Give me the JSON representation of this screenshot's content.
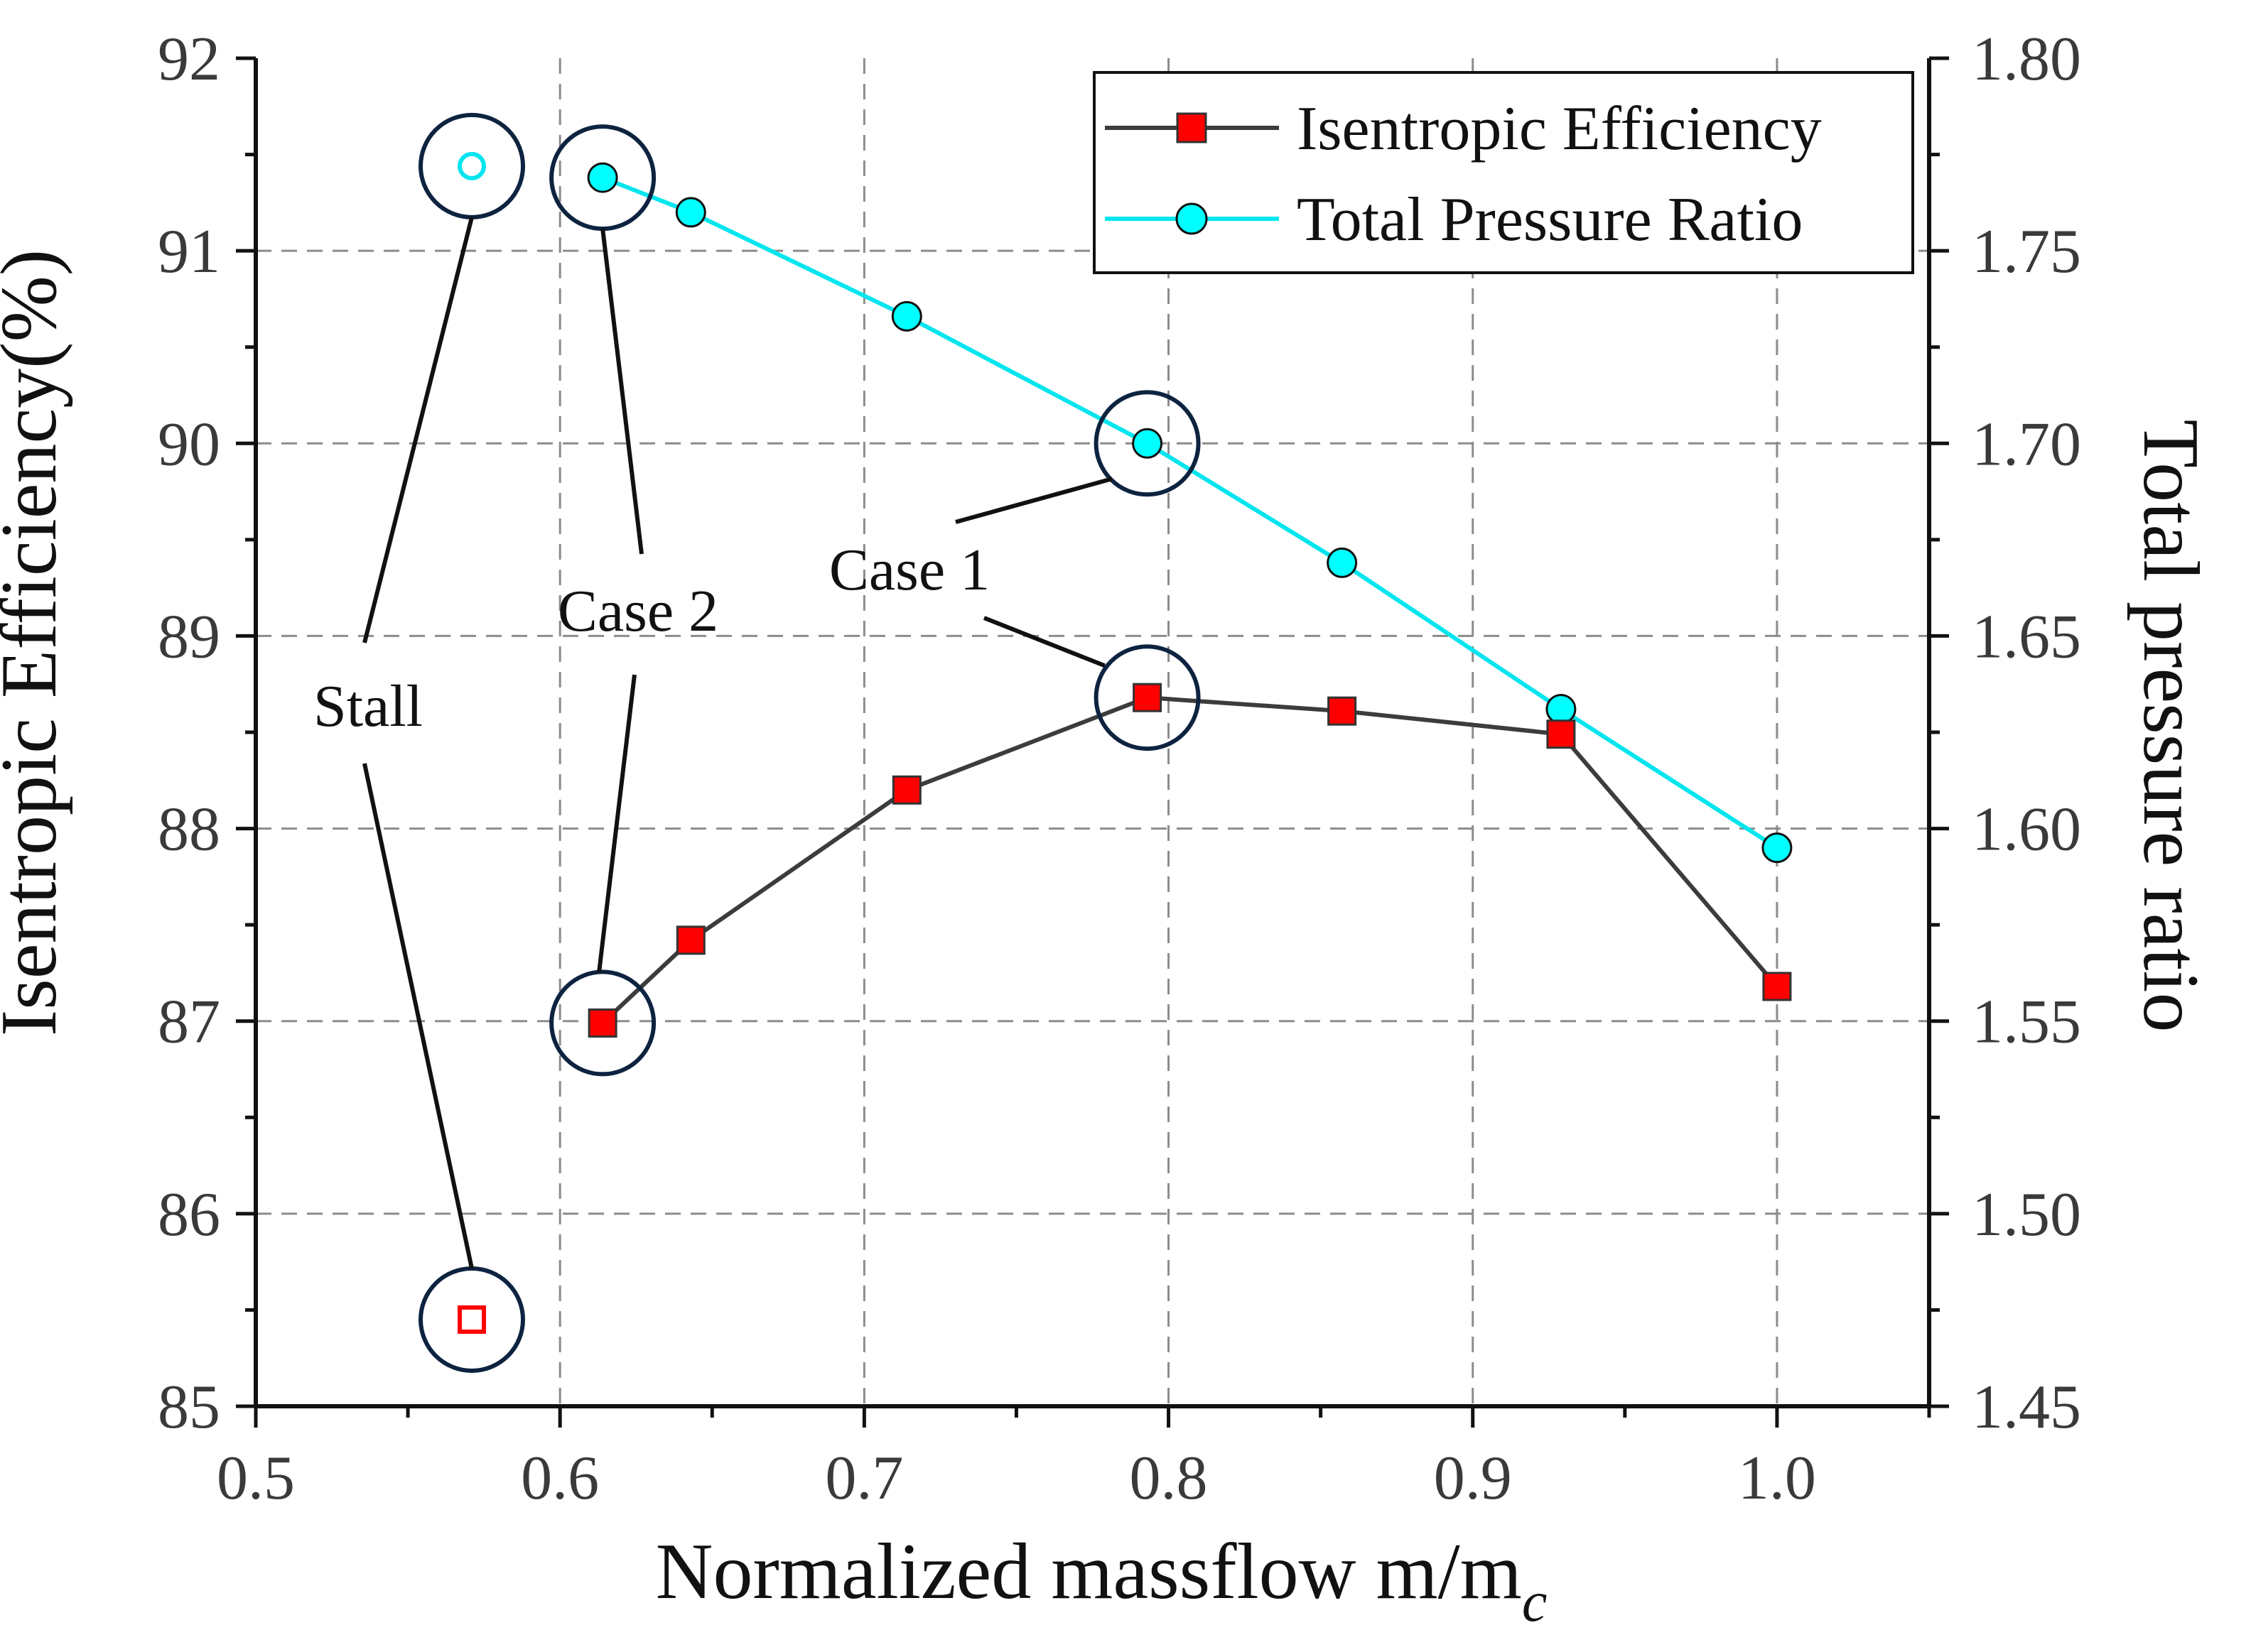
{
  "chart_data": {
    "type": "line",
    "title": "",
    "xlabel": "Normalized massflow m/m",
    "xlabel_subscript": "c",
    "ylabel": "Isentropic Efficiency(%)",
    "y2label": "Total pressure ratio",
    "xlim": [
      0.5,
      1.05
    ],
    "ylim": [
      85,
      92
    ],
    "y2lim": [
      1.45,
      1.8
    ],
    "x_ticks": [
      "0.5",
      "0.6",
      "0.7",
      "0.8",
      "0.9",
      "1.0"
    ],
    "y_ticks": [
      "85",
      "86",
      "87",
      "88",
      "89",
      "90",
      "91",
      "92"
    ],
    "y2_ticks": [
      "1.45",
      "1.50",
      "1.55",
      "1.60",
      "1.65",
      "1.70",
      "1.75",
      "1.80"
    ],
    "grid": true,
    "legend_position": "top-right",
    "series": [
      {
        "name": "Isentropic Efficiency",
        "axis": "left",
        "color": "#ff0000",
        "line_color": "#3c3c3c",
        "marker": "square",
        "x": [
          0.614,
          0.643,
          0.714,
          0.793,
          0.857,
          0.929,
          1.0
        ],
        "values": [
          86.99,
          87.42,
          88.2,
          88.68,
          88.61,
          88.49,
          87.18
        ],
        "stall_point": {
          "x": 0.571,
          "value": 85.45
        }
      },
      {
        "name": "Total Pressure Ratio",
        "axis": "right",
        "color": "#00ffff",
        "line_color": "#00e5ee",
        "marker": "circle",
        "x": [
          0.614,
          0.643,
          0.714,
          0.793,
          0.857,
          0.929,
          1.0
        ],
        "values": [
          1.769,
          1.76,
          1.733,
          1.7,
          1.669,
          1.631,
          1.595
        ],
        "stall_point": {
          "x": 0.571,
          "value": 1.772
        }
      }
    ],
    "annotations": [
      {
        "text": "Stall",
        "x": 0.571,
        "targets": [
          "efficiency",
          "pressure"
        ]
      },
      {
        "text": "Case 2",
        "x": 0.614,
        "targets": [
          "efficiency",
          "pressure"
        ]
      },
      {
        "text": "Case 1",
        "x": 0.793,
        "targets": [
          "efficiency",
          "pressure"
        ]
      }
    ],
    "highlight_color": "#0d2340"
  }
}
